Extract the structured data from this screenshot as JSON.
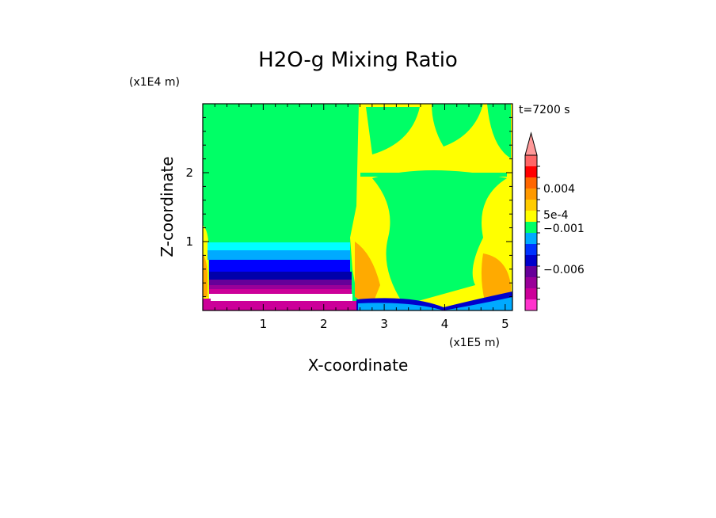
{
  "chart_data": {
    "type": "heatmap",
    "title": "H2O-g Mixing Ratio",
    "xlabel": "X-coordinate",
    "ylabel": "Z-coordinate",
    "x_scale_label": "(x1E5 m)",
    "y_scale_label": "(x1E4 m)",
    "time_label": "t=7200 s",
    "x_ticks": [
      "1",
      "2",
      "3",
      "4",
      "5"
    ],
    "x_tick_values": [
      1,
      2,
      3,
      4,
      5
    ],
    "y_ticks": [
      "1",
      "2"
    ],
    "y_tick_values": [
      1,
      2
    ],
    "xlim": [
      0,
      5.12
    ],
    "ylim": [
      0,
      3.0
    ],
    "colorbar": {
      "labels": [
        {
          "text": "0.004",
          "level": 0.004
        },
        {
          "text": "5e-4",
          "level": 0.0005
        },
        {
          "text": "−0.001",
          "level": -0.001
        },
        {
          "text": "−0.006",
          "level": -0.006
        }
      ],
      "colors": [
        "#ff33cc",
        "#cc0099",
        "#990099",
        "#660099",
        "#0000cc",
        "#0033ff",
        "#00aaff",
        "#00ff66",
        "#ffff00",
        "#ffcc00",
        "#ff9900",
        "#ff6600",
        "#ff0000",
        "#ff6666",
        "#ff9999"
      ]
    },
    "colors": {
      "background": "#00ff66",
      "yellow": "#ffff00",
      "orange": "#ffaa00",
      "cyan": "#00ffff",
      "light_blue": "#00aaff",
      "blue": "#0000ff",
      "dark_blue": "#0000aa",
      "purple": "#660099",
      "violet": "#990099",
      "magenta": "#cc0099",
      "pink": "#ff33cc",
      "white": "#ffffff"
    }
  }
}
